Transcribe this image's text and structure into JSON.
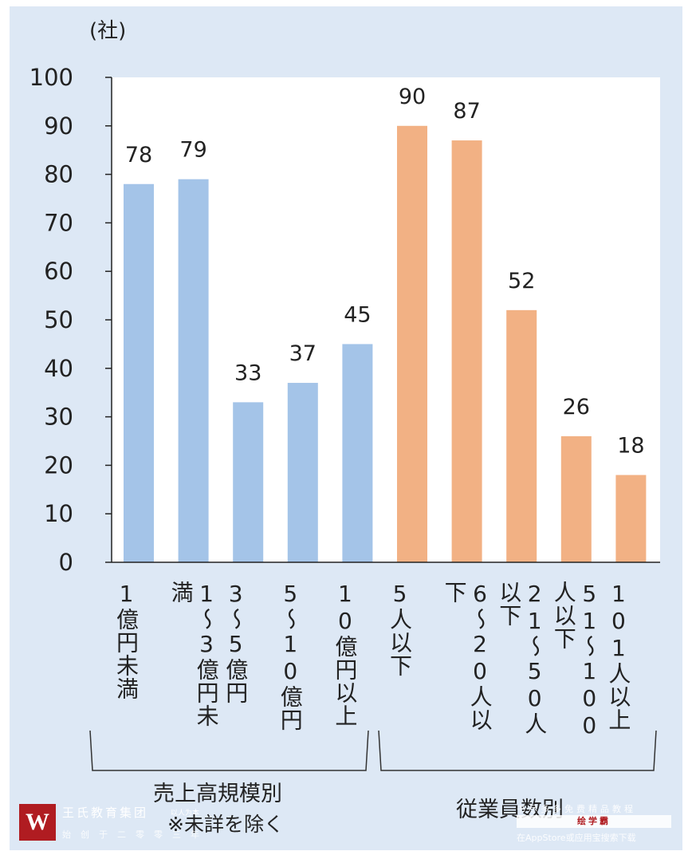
{
  "chart_data": {
    "type": "bar",
    "unit_label": "(社)",
    "ylim": [
      0,
      100
    ],
    "yticks": [
      0,
      10,
      20,
      30,
      40,
      50,
      60,
      70,
      80,
      90,
      100
    ],
    "grid": false,
    "categories": [
      "1億円未満",
      "1～3億円未満",
      "3～5億円",
      "5～10億円",
      "10億円以上",
      "5人以下",
      "6～20人以下",
      "21～50人以下",
      "51～100人以下",
      "101人以上"
    ],
    "category_display": [
      "1​億円未満",
      "1～3​億円未満",
      "3～5​億円",
      "5～10​億円",
      "10​億円以上",
      "5​人以下",
      "6～20​人以下",
      "21～50​人以下",
      "51～100​人以下",
      "101​人以上"
    ],
    "values": [
      78,
      79,
      33,
      37,
      45,
      90,
      87,
      52,
      26,
      18
    ],
    "groups": [
      {
        "name": "売上高規模別",
        "start": 0,
        "end": 4,
        "color": "#a4c4e8",
        "note": "※未詳を除く"
      },
      {
        "name": "従業員数別",
        "start": 5,
        "end": 9,
        "color": "#f2b184"
      }
    ]
  },
  "watermark": {
    "logo_letter": "W",
    "name": "王氏教育集团",
    "small": "以人为本",
    "sub": "始创于二零零三年",
    "right_line1": "书尽多多免费精品教程",
    "right_line2": "绘学霸",
    "right_line3": "在AppStore或应用宝搜索下载"
  }
}
